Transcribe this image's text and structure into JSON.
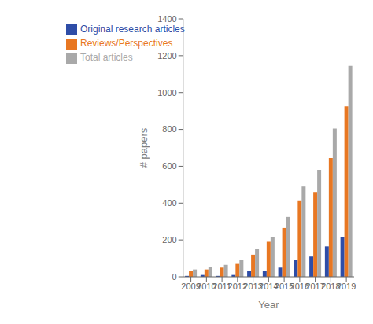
{
  "chart_data": {
    "type": "bar",
    "categories": [
      "2009",
      "2010",
      "2011",
      "2012",
      "2013",
      "2014",
      "2015",
      "2016",
      "2017",
      "2018",
      "2019"
    ],
    "series": [
      {
        "name": "Original research articles",
        "color": "#2E4DA7",
        "values": [
          5,
          10,
          5,
          10,
          30,
          30,
          50,
          90,
          110,
          165,
          215
        ]
      },
      {
        "name": "Reviews/Perspectives",
        "color": "#E87722",
        "values": [
          30,
          40,
          50,
          70,
          120,
          190,
          265,
          415,
          460,
          645,
          925
        ]
      },
      {
        "name": "Total articles",
        "color": "#A9A9A9",
        "values": [
          40,
          55,
          65,
          90,
          150,
          215,
          325,
          490,
          580,
          805,
          1145
        ]
      }
    ],
    "x_label": "Year",
    "y_label": "# papers",
    "ylim": [
      0,
      1400
    ],
    "yticks": [
      0,
      200,
      400,
      600,
      800,
      1000,
      1200,
      1400
    ],
    "legend": "upper left",
    "grid": false
  }
}
